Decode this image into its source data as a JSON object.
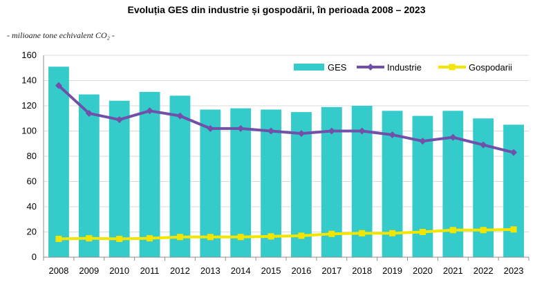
{
  "chart_data": {
    "type": "bar",
    "title": "Evoluția GES din industrie și gospodării, în perioada 2008 – 2023",
    "subtitle": "- milioane tone echivalent CO₂ -",
    "categories": [
      "2008",
      "2009",
      "2010",
      "2011",
      "2012",
      "2013",
      "2014",
      "2015",
      "2016",
      "2017",
      "2018",
      "2019",
      "2020",
      "2021",
      "2022",
      "2023"
    ],
    "ylim": [
      0,
      160
    ],
    "yticks": [
      0,
      20,
      40,
      60,
      80,
      100,
      120,
      140,
      160
    ],
    "grid": true,
    "legend_position": "top-right",
    "series": [
      {
        "name": "GES",
        "type": "bar",
        "color": "#36CBCB",
        "values": [
          151,
          129,
          124,
          131,
          128,
          117,
          118,
          117,
          115,
          119,
          120,
          116,
          112,
          116,
          110,
          105
        ]
      },
      {
        "name": "Industrie",
        "type": "line",
        "color": "#7050A8",
        "values": [
          136,
          114,
          109,
          116,
          112,
          102,
          102,
          100,
          98,
          100,
          100,
          97,
          92,
          95,
          89,
          83
        ]
      },
      {
        "name": "Gospodarii",
        "type": "line",
        "color": "#F2E600",
        "values": [
          14.5,
          15,
          14.5,
          15,
          16,
          16,
          16,
          16.5,
          17,
          18.5,
          19,
          19,
          20,
          21.5,
          21.5,
          22
        ]
      }
    ]
  }
}
